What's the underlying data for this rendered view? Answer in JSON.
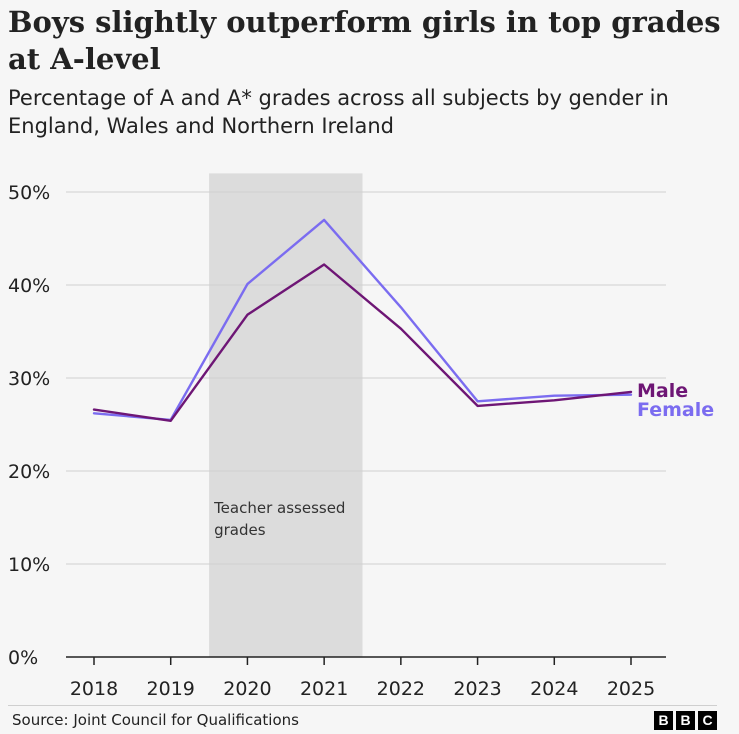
{
  "chart_data": {
    "type": "line",
    "title": "Boys slightly outperform girls in top grades at A-level",
    "subtitle": "Percentage of A and A* grades across all subjects by gender in England, Wales and Northern Ireland",
    "categories": [
      "2018",
      "2019",
      "2020",
      "2021",
      "2022",
      "2023",
      "2024",
      "2025"
    ],
    "series": [
      {
        "name": "Male",
        "color": "#6e1675",
        "values": [
          26.6,
          25.4,
          36.8,
          42.2,
          35.3,
          27.0,
          27.6,
          28.5
        ]
      },
      {
        "name": "Female",
        "color": "#7b6cf0",
        "values": [
          26.2,
          25.5,
          40.1,
          47.0,
          37.6,
          27.5,
          28.1,
          28.2
        ]
      }
    ],
    "y_ticks": [
      "0%",
      "10%",
      "20%",
      "30%",
      "40%",
      "50%"
    ],
    "ylim": [
      0,
      52
    ],
    "xlabel": "",
    "ylabel": "",
    "grid": true,
    "annotation": {
      "range": [
        "2019.5",
        "2021.5"
      ],
      "text_lines": [
        "Teacher assessed",
        "grades"
      ]
    },
    "legend_placement": "end-of-lines"
  },
  "footer": {
    "source": "Source: Joint Council for Qualifications",
    "logo_letters": [
      "B",
      "B",
      "C"
    ]
  }
}
